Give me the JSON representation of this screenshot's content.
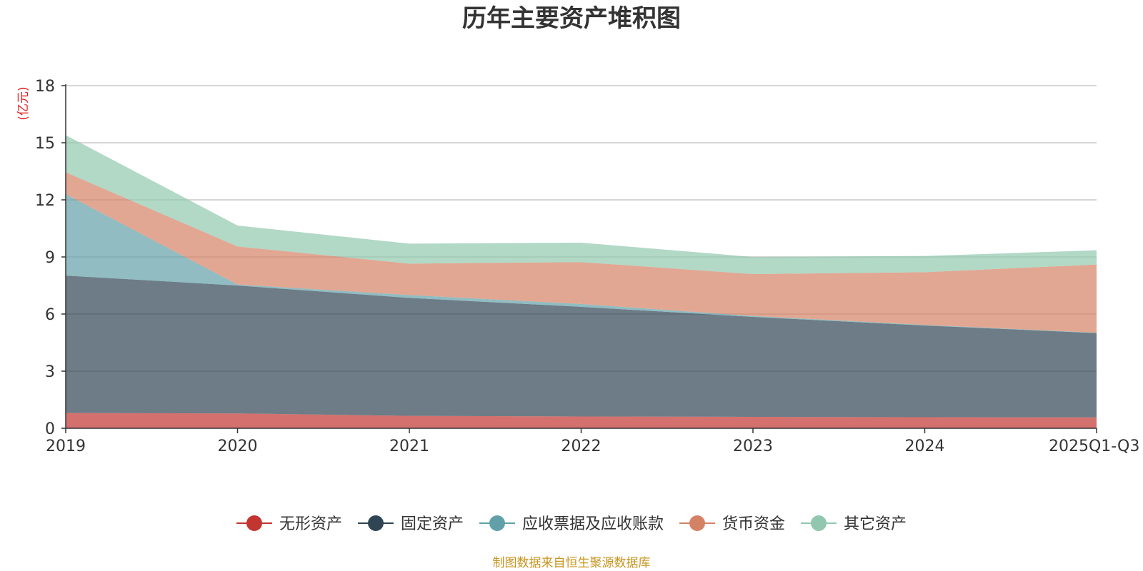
{
  "chart_data": {
    "type": "area",
    "stacked": true,
    "title": "历年主要资产堆积图",
    "unit_label": "(亿元)",
    "categories": [
      "2019",
      "2020",
      "2021",
      "2022",
      "2023",
      "2024",
      "2025Q1-Q3"
    ],
    "ylim": [
      0,
      18
    ],
    "yticks": [
      0,
      3,
      6,
      9,
      12,
      15,
      18
    ],
    "grid": true,
    "series": [
      {
        "name": "无形资产",
        "color": "#c23531",
        "values": [
          0.8,
          0.78,
          0.65,
          0.62,
          0.6,
          0.58,
          0.57
        ]
      },
      {
        "name": "固定资产",
        "color": "#2f4554",
        "values": [
          7.22,
          6.72,
          6.2,
          5.76,
          5.25,
          4.82,
          4.43
        ]
      },
      {
        "name": "应收票据及应收账款",
        "color": "#61a0a8",
        "values": [
          4.28,
          0.05,
          0.15,
          0.15,
          0.05,
          0.03,
          0.02
        ]
      },
      {
        "name": "货币资金",
        "color": "#d48265",
        "values": [
          1.15,
          2.0,
          1.65,
          2.2,
          2.2,
          2.77,
          3.58
        ]
      },
      {
        "name": "其它资产",
        "color": "#91c7ae",
        "values": [
          1.95,
          1.1,
          1.05,
          1.02,
          0.9,
          0.85,
          0.75
        ]
      }
    ],
    "legend_position": "bottom-center",
    "source_note": "制图数据来自恒生聚源数据库"
  }
}
